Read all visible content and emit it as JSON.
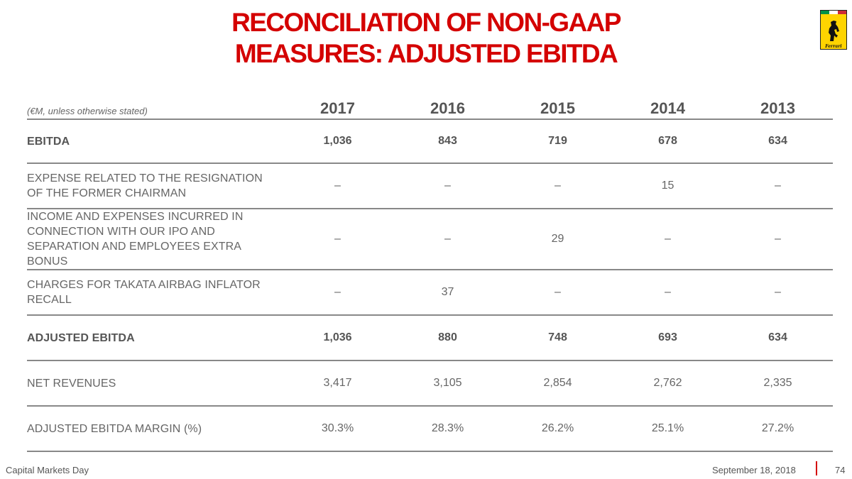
{
  "title": {
    "line1": "RECONCILIATION OF NON-GAAP",
    "line2": "MEASURES: ADJUSTED EBITDA"
  },
  "logo": {
    "icon": "ferrari-prancing-horse-shield-icon",
    "text": "Ferrari"
  },
  "table": {
    "unit_note": "(€M, unless otherwise stated)",
    "years": [
      "2017",
      "2016",
      "2015",
      "2014",
      "2013"
    ],
    "rows": [
      {
        "label": "EBITDA",
        "values": [
          "1,036",
          "843",
          "719",
          "678",
          "634"
        ],
        "bold": true
      },
      {
        "label": "EXPENSE RELATED TO THE RESIGNATION OF THE FORMER CHAIRMAN",
        "values": [
          "–",
          "–",
          "–",
          "15",
          "–"
        ],
        "bold": false
      },
      {
        "label": "INCOME AND EXPENSES INCURRED IN CONNECTION WITH OUR IPO AND SEPARATION AND EMPLOYEES EXTRA BONUS",
        "values": [
          "–",
          "–",
          "29",
          "–",
          "–"
        ],
        "bold": false
      },
      {
        "label": "CHARGES FOR TAKATA AIRBAG INFLATOR RECALL",
        "values": [
          "–",
          "37",
          "–",
          "–",
          "–"
        ],
        "bold": false
      },
      {
        "label": "ADJUSTED EBITDA",
        "values": [
          "1,036",
          "880",
          "748",
          "693",
          "634"
        ],
        "bold": true
      },
      {
        "label": "NET REVENUES",
        "values": [
          "3,417",
          "3,105",
          "2,854",
          "2,762",
          "2,335"
        ],
        "bold": false
      },
      {
        "label": "ADJUSTED EBITDA MARGIN (%)",
        "values": [
          "30.3%",
          "28.3%",
          "26.2%",
          "25.1%",
          "27.2%"
        ],
        "bold": false
      }
    ]
  },
  "footer": {
    "event": "Capital Markets Day",
    "date": "September 18, 2018",
    "page": "74"
  },
  "colors": {
    "title": "#d40000",
    "logo_yellow": "#ffd400",
    "rule": "#888888"
  }
}
